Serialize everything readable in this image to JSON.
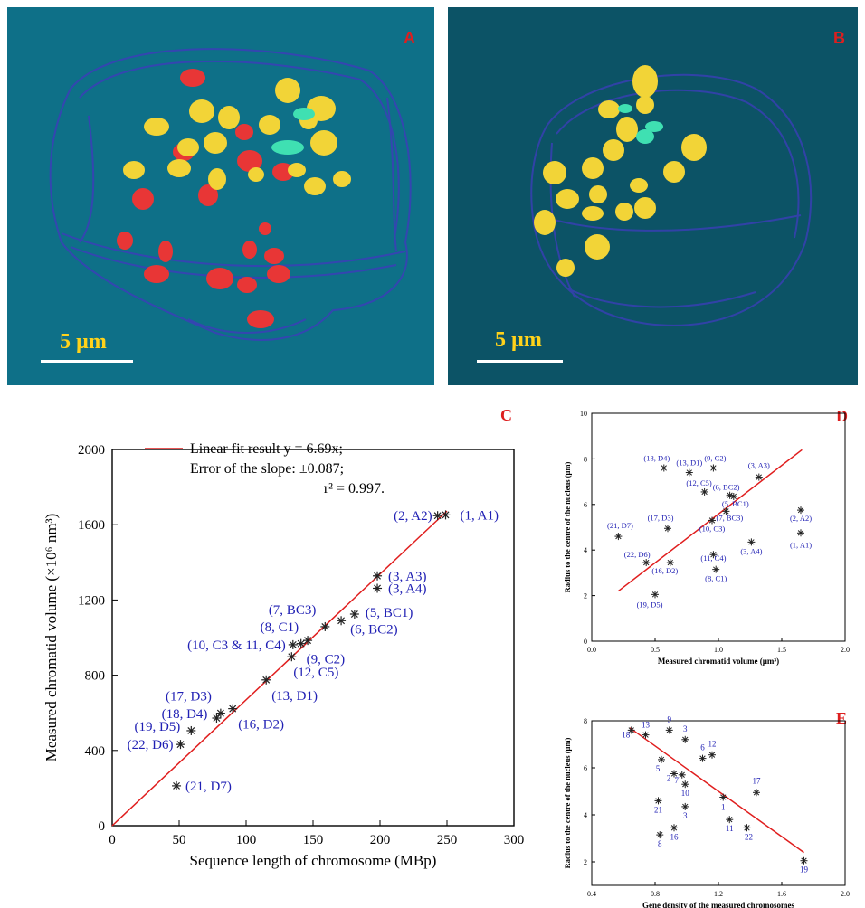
{
  "panels": {
    "A": {
      "letter": "A",
      "scalebar": "5 µm"
    },
    "B": {
      "letter": "B",
      "scalebar": "5 µm"
    },
    "C": {
      "letter": "C"
    },
    "D": {
      "letter": "D"
    },
    "E": {
      "letter": "E"
    }
  },
  "colors": {
    "panelA_bg": "#0e7088",
    "panelB_bg": "#0c5366",
    "red_chromatid": "#e83636",
    "yellow_chromatid": "#f2d437",
    "cyan_chromatid": "#3fe0b2",
    "nucleus_mesh": "#3b3fb8",
    "fit_line": "#e01e1e",
    "marker": "#222222",
    "point_label": "#2020b4",
    "panel_letter": "#dd1f1f",
    "scalebar_text": "#ffd21a"
  },
  "chart_data": [
    {
      "id": "C",
      "type": "scatter",
      "xlabel": "Sequence length of chromosome (MBp)",
      "ylabel": "Measured chromatid volume (×10⁶ nm³)",
      "xlim": [
        0,
        300
      ],
      "ylim": [
        0,
        2000
      ],
      "xticks": [
        0,
        50,
        100,
        150,
        200,
        250,
        300
      ],
      "yticks": [
        0,
        400,
        800,
        1200,
        1600,
        2000
      ],
      "legend": {
        "line1": "Linear fit result y = 6.69x;",
        "line2": "Error of the slope: ±0.087;",
        "line3": "r² = 0.997."
      },
      "fit": {
        "slope": 6.69,
        "x_range": [
          0,
          250
        ]
      },
      "points": [
        {
          "x": 249,
          "y": 1652,
          "label": "(1, A1)"
        },
        {
          "x": 243,
          "y": 1648,
          "label": "(2, A2)"
        },
        {
          "x": 198,
          "y": 1328,
          "label": "(3, A3)"
        },
        {
          "x": 198,
          "y": 1262,
          "label": "(3, A4)"
        },
        {
          "x": 181,
          "y": 1125,
          "label": "(5, BC1)"
        },
        {
          "x": 171,
          "y": 1090,
          "label": "(6, BC2)"
        },
        {
          "x": 159,
          "y": 1058,
          "label": "(7, BC3)"
        },
        {
          "x": 146,
          "y": 985,
          "label": "(8, C1)"
        },
        {
          "x": 141,
          "y": 968,
          "label": "(9, C2)"
        },
        {
          "x": 135,
          "y": 962,
          "label": "(10, C3 & 11, C4)"
        },
        {
          "x": 134,
          "y": 898,
          "label": "(12, C5)"
        },
        {
          "x": 115,
          "y": 775,
          "label": "(13, D1)"
        },
        {
          "x": 90,
          "y": 622,
          "label": "(16, D2)"
        },
        {
          "x": 81,
          "y": 598,
          "label": "(17, D3)"
        },
        {
          "x": 78,
          "y": 572,
          "label": "(18, D4)"
        },
        {
          "x": 59,
          "y": 505,
          "label": "(19, D5)"
        },
        {
          "x": 51,
          "y": 432,
          "label": "(22, D6)"
        },
        {
          "x": 48,
          "y": 212,
          "label": "(21, D7)"
        }
      ]
    },
    {
      "id": "D",
      "type": "scatter",
      "xlabel": "Measured chromatid volume (µm³)",
      "ylabel": "Radius to the centre of the nucleus (µm)",
      "xlim": [
        0,
        2.0
      ],
      "ylim": [
        0,
        10
      ],
      "xticks": [
        "0.0",
        "0.5",
        "1.0",
        "1.5",
        "2.0"
      ],
      "yticks": [
        "0",
        "2",
        "4",
        "6",
        "8",
        "10"
      ],
      "fit": {
        "x": [
          0.21,
          1.66
        ],
        "y": [
          2.2,
          8.4
        ]
      },
      "points": [
        {
          "x": 1.65,
          "y": 4.75,
          "label": "(1, A1)"
        },
        {
          "x": 1.65,
          "y": 5.75,
          "label": "(2, A2)"
        },
        {
          "x": 1.32,
          "y": 7.2,
          "label": "(3, A3)"
        },
        {
          "x": 1.26,
          "y": 4.35,
          "label": "(3, A4)"
        },
        {
          "x": 1.12,
          "y": 6.35,
          "label": "(5, BC1)"
        },
        {
          "x": 1.09,
          "y": 6.4,
          "label": "(6, BC2)"
        },
        {
          "x": 1.06,
          "y": 5.7,
          "label": "(7, BC3)"
        },
        {
          "x": 0.98,
          "y": 3.15,
          "label": "(8, C1)"
        },
        {
          "x": 0.96,
          "y": 7.6,
          "label": "(9, C2)"
        },
        {
          "x": 0.95,
          "y": 5.3,
          "label": "(10, C3)"
        },
        {
          "x": 0.96,
          "y": 3.8,
          "label": "(11, C4)"
        },
        {
          "x": 0.89,
          "y": 6.55,
          "label": "(12, C5)"
        },
        {
          "x": 0.77,
          "y": 7.4,
          "label": "(13, D1)"
        },
        {
          "x": 0.62,
          "y": 3.45,
          "label": "(16, D2)"
        },
        {
          "x": 0.6,
          "y": 4.95,
          "label": "(17, D3)"
        },
        {
          "x": 0.57,
          "y": 7.6,
          "label": "(18, D4)"
        },
        {
          "x": 0.5,
          "y": 2.05,
          "label": "(19, D5)"
        },
        {
          "x": 0.43,
          "y": 3.45,
          "label": "(22, D6)"
        },
        {
          "x": 0.21,
          "y": 4.6,
          "label": "(21, D7)"
        }
      ]
    },
    {
      "id": "E",
      "type": "scatter",
      "xlabel": "Gene density of the measured chromosomes",
      "ylabel": "Radius to the centre of the nucleus (µm)",
      "xlim": [
        0.4,
        2.0
      ],
      "ylim": [
        1,
        8
      ],
      "xticks": [
        "0.4",
        "0.8",
        "1.2",
        "1.6",
        "2.0"
      ],
      "yticks": [
        "2",
        "4",
        "6",
        "8"
      ],
      "fit": {
        "x": [
          0.64,
          1.74
        ],
        "y": [
          7.7,
          2.4
        ]
      },
      "points": [
        {
          "x": 1.23,
          "y": 4.75,
          "label": "1"
        },
        {
          "x": 0.92,
          "y": 5.75,
          "label": "2"
        },
        {
          "x": 0.99,
          "y": 7.2,
          "label": "3"
        },
        {
          "x": 0.99,
          "y": 4.35,
          "label": "3"
        },
        {
          "x": 0.84,
          "y": 6.35,
          "label": "5"
        },
        {
          "x": 1.1,
          "y": 6.4,
          "label": "6"
        },
        {
          "x": 0.97,
          "y": 5.7,
          "label": "7"
        },
        {
          "x": 0.83,
          "y": 3.15,
          "label": "8"
        },
        {
          "x": 0.89,
          "y": 7.6,
          "label": "9"
        },
        {
          "x": 0.99,
          "y": 5.3,
          "label": "10"
        },
        {
          "x": 1.27,
          "y": 3.8,
          "label": "11"
        },
        {
          "x": 1.16,
          "y": 6.55,
          "label": "12"
        },
        {
          "x": 0.74,
          "y": 7.4,
          "label": "13"
        },
        {
          "x": 0.92,
          "y": 3.45,
          "label": "16"
        },
        {
          "x": 1.44,
          "y": 4.95,
          "label": "17"
        },
        {
          "x": 0.65,
          "y": 7.6,
          "label": "18"
        },
        {
          "x": 1.74,
          "y": 2.05,
          "label": "19"
        },
        {
          "x": 0.82,
          "y": 4.6,
          "label": "21"
        },
        {
          "x": 1.38,
          "y": 3.45,
          "label": "22"
        }
      ]
    }
  ]
}
